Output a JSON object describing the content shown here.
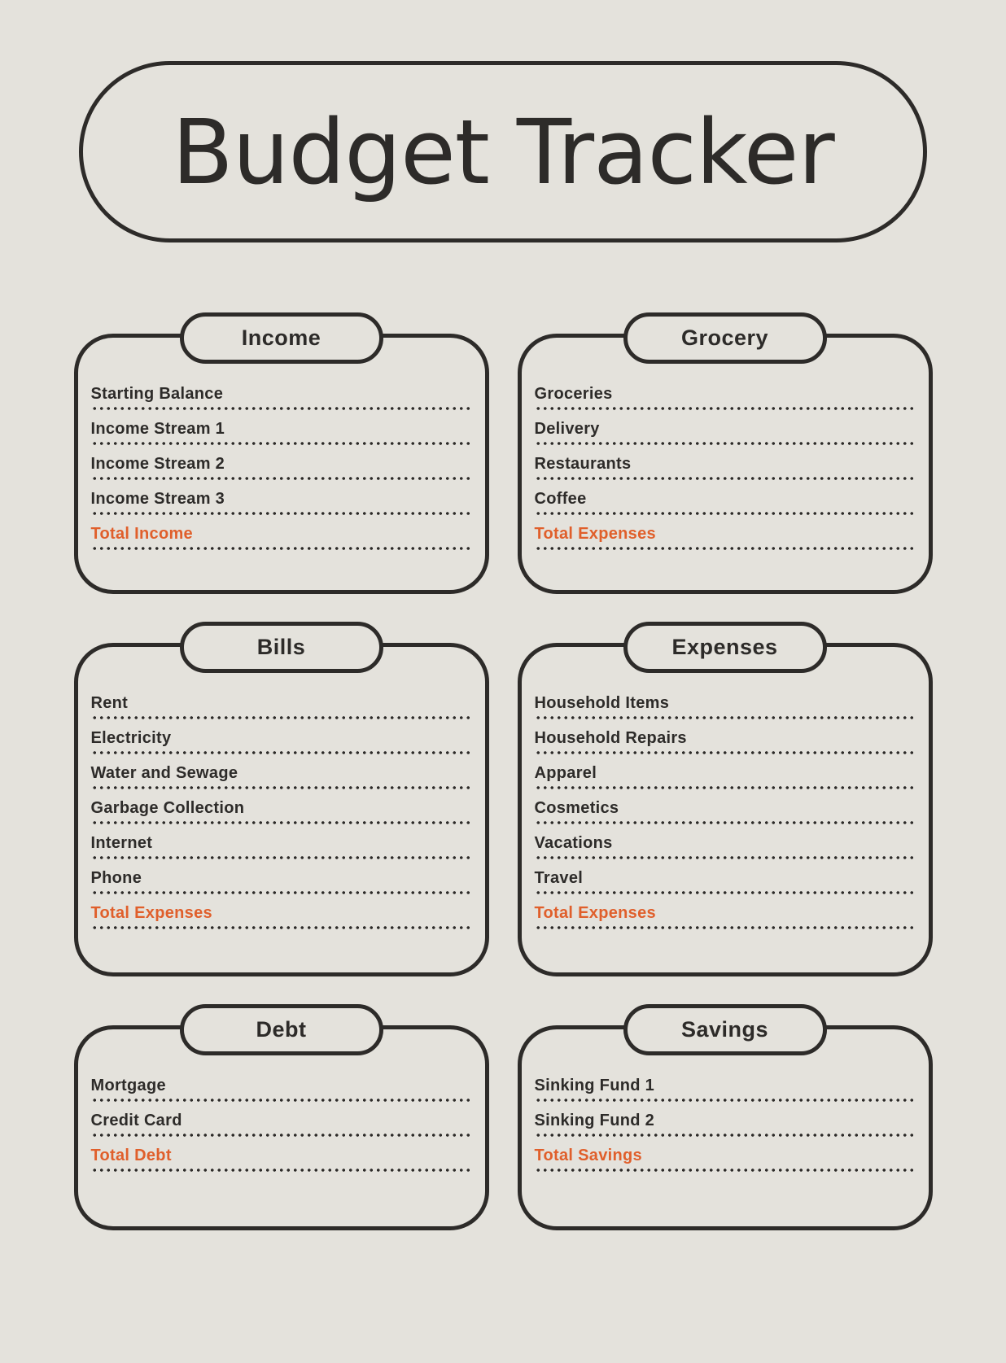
{
  "title": "Budget Tracker",
  "colors": {
    "background": "#e4e2dc",
    "ink": "#2d2b29",
    "accent": "#e05f2b"
  },
  "sections": [
    {
      "title": "Income",
      "items": [
        {
          "label": "Starting Balance",
          "accent": false
        },
        {
          "label": "Income Stream 1",
          "accent": false
        },
        {
          "label": "Income Stream 2",
          "accent": false
        },
        {
          "label": "Income Stream 3",
          "accent": false
        },
        {
          "label": "Total Income",
          "accent": true
        }
      ]
    },
    {
      "title": "Grocery",
      "items": [
        {
          "label": "Groceries",
          "accent": false
        },
        {
          "label": "Delivery",
          "accent": false
        },
        {
          "label": "Restaurants",
          "accent": false
        },
        {
          "label": "Coffee",
          "accent": false
        },
        {
          "label": "Total Expenses",
          "accent": true
        }
      ]
    },
    {
      "title": "Bills",
      "items": [
        {
          "label": "Rent",
          "accent": false
        },
        {
          "label": "Electricity",
          "accent": false
        },
        {
          "label": "Water and Sewage",
          "accent": false
        },
        {
          "label": "Garbage Collection",
          "accent": false
        },
        {
          "label": "Internet",
          "accent": false
        },
        {
          "label": "Phone",
          "accent": false
        },
        {
          "label": "Total Expenses",
          "accent": true
        }
      ]
    },
    {
      "title": "Expenses",
      "items": [
        {
          "label": "Household Items",
          "accent": false
        },
        {
          "label": "Household Repairs",
          "accent": false
        },
        {
          "label": "Apparel",
          "accent": false
        },
        {
          "label": "Cosmetics",
          "accent": false
        },
        {
          "label": "Vacations",
          "accent": false
        },
        {
          "label": "Travel",
          "accent": false
        },
        {
          "label": "Total Expenses",
          "accent": true
        }
      ]
    },
    {
      "title": "Debt",
      "items": [
        {
          "label": "Mortgage",
          "accent": false
        },
        {
          "label": "Credit Card",
          "accent": false
        },
        {
          "label": "Total Debt",
          "accent": true
        }
      ]
    },
    {
      "title": "Savings",
      "items": [
        {
          "label": "Sinking Fund 1",
          "accent": false
        },
        {
          "label": "Sinking Fund 2",
          "accent": false
        },
        {
          "label": "Total Savings",
          "accent": true
        }
      ]
    }
  ]
}
